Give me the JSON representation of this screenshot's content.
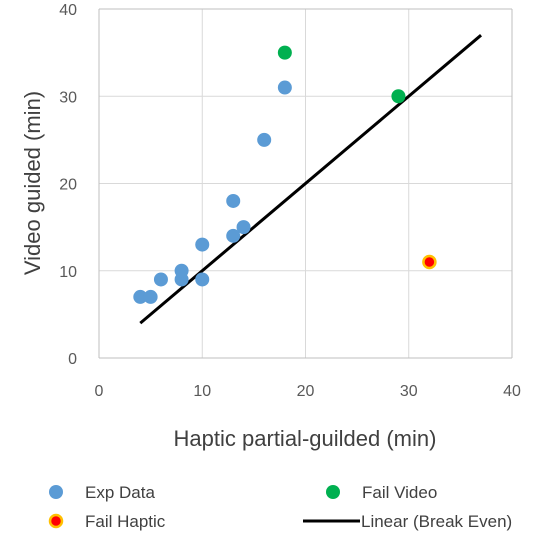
{
  "chart_data": {
    "type": "scatter",
    "xlabel": "Haptic partial-guilded (min)",
    "ylabel": "Video guided (min)",
    "xlim": [
      0,
      40
    ],
    "ylim": [
      0,
      40
    ],
    "xticks": [
      "0",
      "10",
      "20",
      "30",
      "40"
    ],
    "yticks": [
      "0",
      "10",
      "20",
      "30",
      "40"
    ],
    "grid": true,
    "legend_position": "bottom",
    "series": [
      {
        "name": "Exp Data",
        "kind": "points",
        "color": "#5B9BD5",
        "points": [
          [
            4,
            7
          ],
          [
            5,
            7
          ],
          [
            6,
            9
          ],
          [
            8,
            9
          ],
          [
            8,
            10
          ],
          [
            10,
            9
          ],
          [
            10,
            13
          ],
          [
            13,
            14
          ],
          [
            13,
            18
          ],
          [
            14,
            15
          ],
          [
            16,
            25
          ],
          [
            18,
            31
          ]
        ]
      },
      {
        "name": "Fail Video",
        "kind": "points",
        "color": "#00B050",
        "points": [
          [
            18,
            35
          ],
          [
            29,
            30
          ]
        ]
      },
      {
        "name": "Fail Haptic",
        "kind": "points",
        "color": "#FF0000",
        "edge_color": "#FFC000",
        "points": [
          [
            32,
            11
          ]
        ]
      },
      {
        "name": "Linear (Break Even)",
        "kind": "line",
        "color": "#000000",
        "points": [
          [
            4,
            4
          ],
          [
            37,
            37
          ]
        ]
      }
    ]
  }
}
